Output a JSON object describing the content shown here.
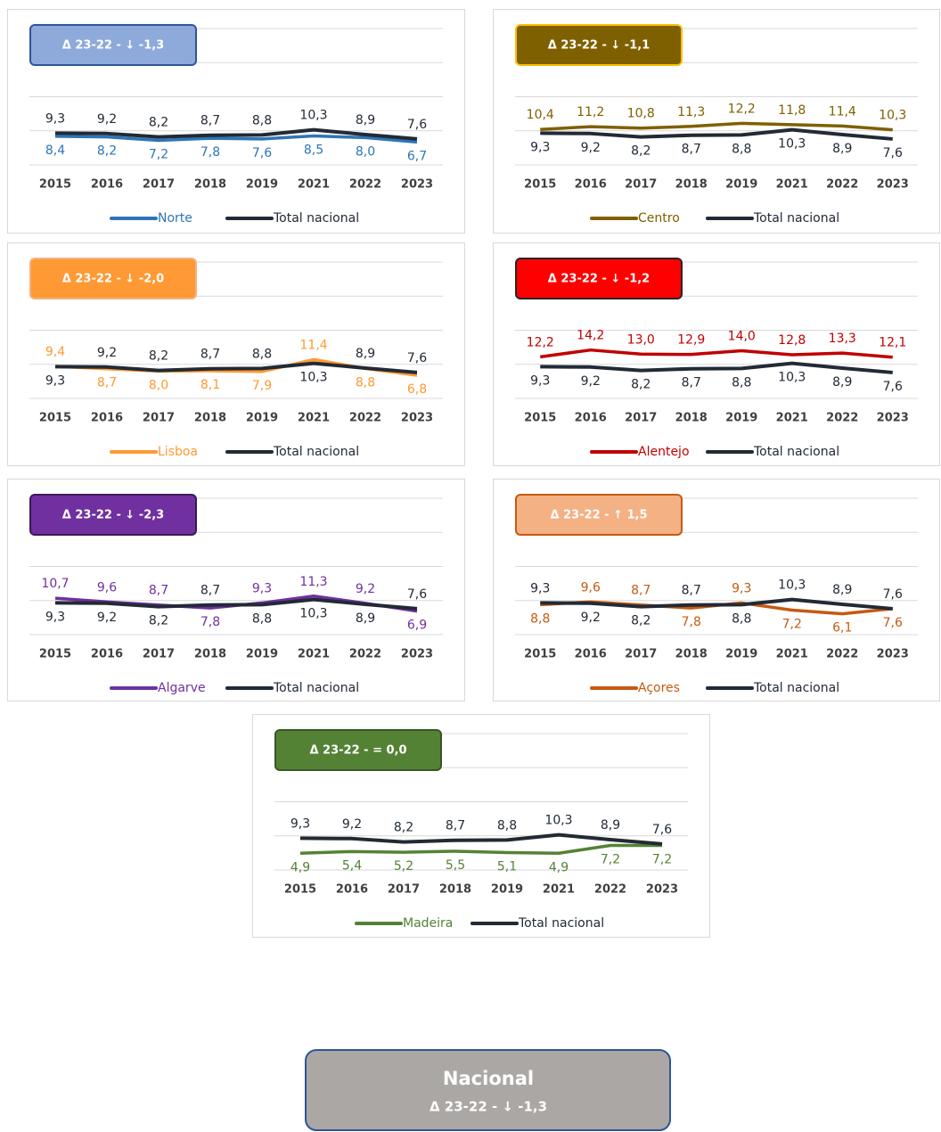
{
  "chart_data": [
    {
      "type": "line",
      "annotation": "Δ 23-22 - ↓ -1,3",
      "annotation_fill": "#8eaadb",
      "annotation_border": "#2f5597",
      "categories": [
        "2015",
        "2016",
        "2017",
        "2018",
        "2019",
        "2021",
        "2022",
        "2023"
      ],
      "ylim": [
        0,
        40
      ],
      "yticks": [
        0,
        10,
        20,
        30,
        40
      ],
      "grid": true,
      "series": [
        {
          "name": "Norte",
          "color": "#2e75b6",
          "values": [
            8.4,
            8.2,
            7.2,
            7.8,
            7.6,
            8.5,
            8.0,
            6.7
          ],
          "value_labels": [
            "8,4",
            "8,2",
            "7,2",
            "7,8",
            "7,6",
            "8,5",
            "8,0",
            "6,7"
          ]
        },
        {
          "name": "Total nacional",
          "color": "#222a35",
          "values": [
            9.3,
            9.2,
            8.2,
            8.7,
            8.8,
            10.3,
            8.9,
            7.6
          ],
          "value_labels": [
            "9,3",
            "9,2",
            "8,2",
            "8,7",
            "8,8",
            "10,3",
            "8,9",
            "7,6"
          ]
        }
      ]
    },
    {
      "type": "line",
      "annotation": "Δ 23-22 - ↓ -1,1",
      "annotation_fill": "#7f6000",
      "annotation_border": "#ffc000",
      "categories": [
        "2015",
        "2016",
        "2017",
        "2018",
        "2019",
        "2021",
        "2022",
        "2023"
      ],
      "ylim": [
        0,
        40
      ],
      "yticks": [
        0,
        10,
        20,
        30,
        40
      ],
      "grid": true,
      "series": [
        {
          "name": "Centro",
          "color": "#7f6000",
          "values": [
            10.4,
            11.2,
            10.8,
            11.3,
            12.2,
            11.8,
            11.4,
            10.3
          ],
          "value_labels": [
            "10,4",
            "11,2",
            "10,8",
            "11,3",
            "12,2",
            "11,8",
            "11,4",
            "10,3"
          ]
        },
        {
          "name": "Total nacional",
          "color": "#222a35",
          "values": [
            9.3,
            9.2,
            8.2,
            8.7,
            8.8,
            10.3,
            8.9,
            7.6
          ],
          "value_labels": [
            "9,3",
            "9,2",
            "8,2",
            "8,7",
            "8,8",
            "10,3",
            "8,9",
            "7,6"
          ]
        }
      ]
    },
    {
      "type": "line",
      "annotation": "Δ 23-22 - ↓ -2,0",
      "annotation_fill": "#ff9933",
      "annotation_border": "#f4b183",
      "categories": [
        "2015",
        "2016",
        "2017",
        "2018",
        "2019",
        "2021",
        "2022",
        "2023"
      ],
      "ylim": [
        0,
        40
      ],
      "yticks": [
        0,
        10,
        20,
        30,
        40
      ],
      "grid": true,
      "series": [
        {
          "name": "Lisboa",
          "color": "#ff9933",
          "values": [
            9.4,
            8.7,
            8.0,
            8.1,
            7.9,
            11.4,
            8.8,
            6.8
          ],
          "value_labels": [
            "9,4",
            "8,7",
            "8,0",
            "8,1",
            "7,9",
            "11,4",
            "8,8",
            "6,8"
          ]
        },
        {
          "name": "Total nacional",
          "color": "#222a35",
          "values": [
            9.3,
            9.2,
            8.2,
            8.7,
            8.8,
            10.3,
            8.9,
            7.6
          ],
          "value_labels": [
            "9,3",
            "9,2",
            "8,2",
            "8,7",
            "8,8",
            "10,3",
            "8,9",
            "7,6"
          ]
        }
      ]
    },
    {
      "type": "line",
      "annotation": "Δ 23-22 - ↓ -1,2",
      "annotation_fill": "#ff0000",
      "annotation_border": "#262626",
      "categories": [
        "2015",
        "2016",
        "2017",
        "2018",
        "2019",
        "2021",
        "2022",
        "2023"
      ],
      "ylim": [
        0,
        40
      ],
      "yticks": [
        0,
        10,
        20,
        30,
        40
      ],
      "grid": true,
      "series": [
        {
          "name": "Alentejo",
          "color": "#c00000",
          "values": [
            12.2,
            14.2,
            13.0,
            12.9,
            14.0,
            12.8,
            13.3,
            12.1
          ],
          "value_labels": [
            "12,2",
            "14,2",
            "13,0",
            "12,9",
            "14,0",
            "12,8",
            "13,3",
            "12,1"
          ]
        },
        {
          "name": "Total nacional",
          "color": "#222a35",
          "values": [
            9.3,
            9.2,
            8.2,
            8.7,
            8.8,
            10.3,
            8.9,
            7.6
          ],
          "value_labels": [
            "9,3",
            "9,2",
            "8,2",
            "8,7",
            "8,8",
            "10,3",
            "8,9",
            "7,6"
          ]
        }
      ]
    },
    {
      "type": "line",
      "annotation": "Δ 23-22 - ↓ -2,3",
      "annotation_fill": "#7030a0",
      "annotation_border": "#3c1a57",
      "categories": [
        "2015",
        "2016",
        "2017",
        "2018",
        "2019",
        "2021",
        "2022",
        "2023"
      ],
      "ylim": [
        0,
        40
      ],
      "yticks": [
        0,
        10,
        20,
        30,
        40
      ],
      "grid": true,
      "series": [
        {
          "name": "Algarve",
          "color": "#7030a0",
          "values": [
            10.7,
            9.6,
            8.7,
            7.8,
            9.3,
            11.3,
            9.2,
            6.9
          ],
          "value_labels": [
            "10,7",
            "9,6",
            "8,7",
            "7,8",
            "9,3",
            "11,3",
            "9,2",
            "6,9"
          ]
        },
        {
          "name": "Total nacional",
          "color": "#222a35",
          "values": [
            9.3,
            9.2,
            8.2,
            8.7,
            8.8,
            10.3,
            8.9,
            7.6
          ],
          "value_labels": [
            "9,3",
            "9,2",
            "8,2",
            "8,7",
            "8,8",
            "10,3",
            "8,9",
            "7,6"
          ]
        }
      ]
    },
    {
      "type": "line",
      "annotation": "Δ 23-22 - ↑ 1,5",
      "annotation_fill": "#f4b183",
      "annotation_border": "#c55a11",
      "categories": [
        "2015",
        "2016",
        "2017",
        "2018",
        "2019",
        "2021",
        "2022",
        "2023"
      ],
      "ylim": [
        0,
        40
      ],
      "yticks": [
        0,
        10,
        20,
        30,
        40
      ],
      "grid": true,
      "series": [
        {
          "name": "Açores",
          "color": "#c55a11",
          "values": [
            8.8,
            9.6,
            8.7,
            7.8,
            9.3,
            7.2,
            6.1,
            7.6
          ],
          "value_labels": [
            "8,8",
            "9,6",
            "8,7",
            "7,8",
            "9,3",
            "7,2",
            "6,1",
            "7,6"
          ]
        },
        {
          "name": "Total nacional",
          "color": "#222a35",
          "values": [
            9.3,
            9.2,
            8.2,
            8.7,
            8.8,
            10.3,
            8.9,
            7.6
          ],
          "value_labels": [
            "9,3",
            "9,2",
            "8,2",
            "8,7",
            "8,8",
            "10,3",
            "8,9",
            "7,6"
          ]
        }
      ]
    },
    {
      "type": "line",
      "annotation": "Δ 23-22 - = 0,0",
      "annotation_fill": "#548235",
      "annotation_border": "#385723",
      "categories": [
        "2015",
        "2016",
        "2017",
        "2018",
        "2019",
        "2021",
        "2022",
        "2023"
      ],
      "ylim": [
        0,
        40
      ],
      "yticks": [
        0,
        10,
        20,
        30,
        40
      ],
      "grid": true,
      "series": [
        {
          "name": "Madeira",
          "color": "#548235",
          "values": [
            4.9,
            5.4,
            5.2,
            5.5,
            5.1,
            4.9,
            7.2,
            7.2
          ],
          "value_labels": [
            "4,9",
            "5,4",
            "5,2",
            "5,5",
            "5,1",
            "4,9",
            "7,2",
            "7,2"
          ]
        },
        {
          "name": "Total nacional",
          "color": "#222a35",
          "values": [
            9.3,
            9.2,
            8.2,
            8.7,
            8.8,
            10.3,
            8.9,
            7.6
          ],
          "value_labels": [
            "9,3",
            "9,2",
            "8,2",
            "8,7",
            "8,8",
            "10,3",
            "8,9",
            "7,6"
          ]
        }
      ]
    }
  ],
  "summary": {
    "title": "Nacional",
    "annotation": "Δ 23-22 - ↓ -1,3"
  }
}
